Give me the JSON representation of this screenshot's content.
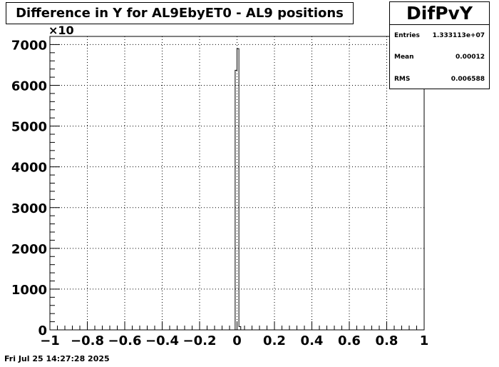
{
  "title": "Difference in Y for AL9EbyET0 - AL9 positions",
  "stats": {
    "name": "DifPvY",
    "rows": [
      {
        "label": "Entries",
        "value": "1.333113e+07"
      },
      {
        "label": "Mean",
        "value": "0.00012"
      },
      {
        "label": "RMS",
        "value": "0.006588"
      }
    ]
  },
  "timestamp": "Fri Jul 25 14:27:28 2025",
  "chart_data": {
    "type": "bar",
    "title": "Difference in Y for AL9EbyET0 - AL9 positions",
    "xlabel": "",
    "ylabel": "",
    "y_multiplier_label": "×10",
    "xlim": [
      -1,
      1
    ],
    "ylim": [
      0,
      7200
    ],
    "x_ticks": [
      "−1",
      "−0.8",
      "−0.6",
      "−0.4",
      "−0.2",
      "0",
      "0.2",
      "0.4",
      "0.6",
      "0.8",
      "1"
    ],
    "y_ticks": [
      "0",
      "1000",
      "2000",
      "3000",
      "4000",
      "5000",
      "6000",
      "7000"
    ],
    "grid": true,
    "bins": [
      {
        "x0": -0.02,
        "x1": -0.01,
        "value": 0
      },
      {
        "x0": -0.01,
        "x1": 0.0,
        "value": 6370
      },
      {
        "x0": 0.0,
        "x1": 0.01,
        "value": 6900
      },
      {
        "x0": 0.01,
        "x1": 0.02,
        "value": 80
      },
      {
        "x0": 0.02,
        "x1": 0.03,
        "value": 0
      }
    ]
  }
}
